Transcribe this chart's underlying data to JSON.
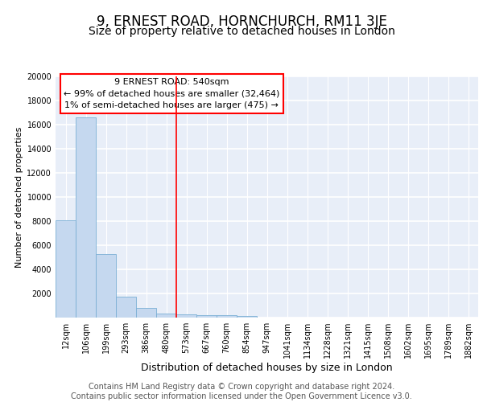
{
  "title": "9, ERNEST ROAD, HORNCHURCH, RM11 3JE",
  "subtitle": "Size of property relative to detached houses in London",
  "xlabel": "Distribution of detached houses by size in London",
  "ylabel": "Number of detached properties",
  "categories": [
    "12sqm",
    "106sqm",
    "199sqm",
    "293sqm",
    "386sqm",
    "480sqm",
    "573sqm",
    "667sqm",
    "760sqm",
    "854sqm",
    "947sqm",
    "1041sqm",
    "1134sqm",
    "1228sqm",
    "1321sqm",
    "1415sqm",
    "1508sqm",
    "1602sqm",
    "1695sqm",
    "1789sqm",
    "1882sqm"
  ],
  "values": [
    8100,
    16600,
    5300,
    1750,
    800,
    350,
    270,
    200,
    170,
    120,
    0,
    0,
    0,
    0,
    0,
    0,
    0,
    0,
    0,
    0,
    0
  ],
  "bar_color": "#c5d8ef",
  "bar_edge_color": "#7aafd4",
  "background_color": "#e8eef8",
  "grid_color": "#ffffff",
  "vline_x": 5.5,
  "vline_color": "red",
  "annotation_line1": "9 ERNEST ROAD: 540sqm",
  "annotation_line2": "← 99% of detached houses are smaller (32,464)",
  "annotation_line3": "1% of semi-detached houses are larger (475) →",
  "annotation_box_color": "white",
  "annotation_box_edge_color": "red",
  "ylim": [
    0,
    20000
  ],
  "yticks": [
    0,
    2000,
    4000,
    6000,
    8000,
    10000,
    12000,
    14000,
    16000,
    18000,
    20000
  ],
  "footer_text": "Contains HM Land Registry data © Crown copyright and database right 2024.\nContains public sector information licensed under the Open Government Licence v3.0.",
  "title_fontsize": 12,
  "subtitle_fontsize": 10,
  "xlabel_fontsize": 9,
  "ylabel_fontsize": 8,
  "tick_fontsize": 7,
  "annotation_fontsize": 8,
  "footer_fontsize": 7
}
